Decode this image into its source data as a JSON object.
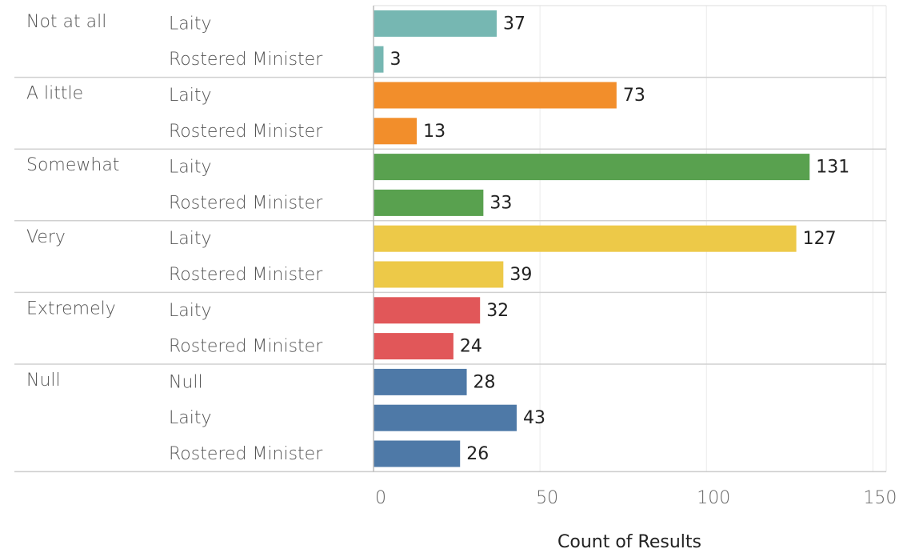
{
  "chart_data": {
    "type": "bar",
    "x_label": "Count of Results",
    "xlim": [
      0,
      154
    ],
    "xticks": [
      0,
      50,
      100,
      150
    ],
    "grid": true,
    "groups": [
      {
        "name": "Not at all",
        "color": "#76b7b2",
        "categories": [
          "Laity",
          "Rostered Minister"
        ],
        "values": [
          37,
          3
        ]
      },
      {
        "name": "A little",
        "color": "#f28e2b",
        "categories": [
          "Laity",
          "Rostered Minister"
        ],
        "values": [
          73,
          13
        ]
      },
      {
        "name": "Somewhat",
        "color": "#59a14f",
        "categories": [
          "Laity",
          "Rostered Minister"
        ],
        "values": [
          131,
          33
        ]
      },
      {
        "name": "Very",
        "color": "#edc948",
        "categories": [
          "Laity",
          "Rostered Minister"
        ],
        "values": [
          127,
          39
        ]
      },
      {
        "name": "Extremely",
        "color": "#e15759",
        "categories": [
          "Laity",
          "Rostered Minister"
        ],
        "values": [
          32,
          24
        ]
      },
      {
        "name": "Null",
        "color": "#4e79a7",
        "categories": [
          "Null",
          "Laity",
          "Rostered Minister"
        ],
        "values": [
          28,
          43,
          26
        ]
      }
    ]
  }
}
